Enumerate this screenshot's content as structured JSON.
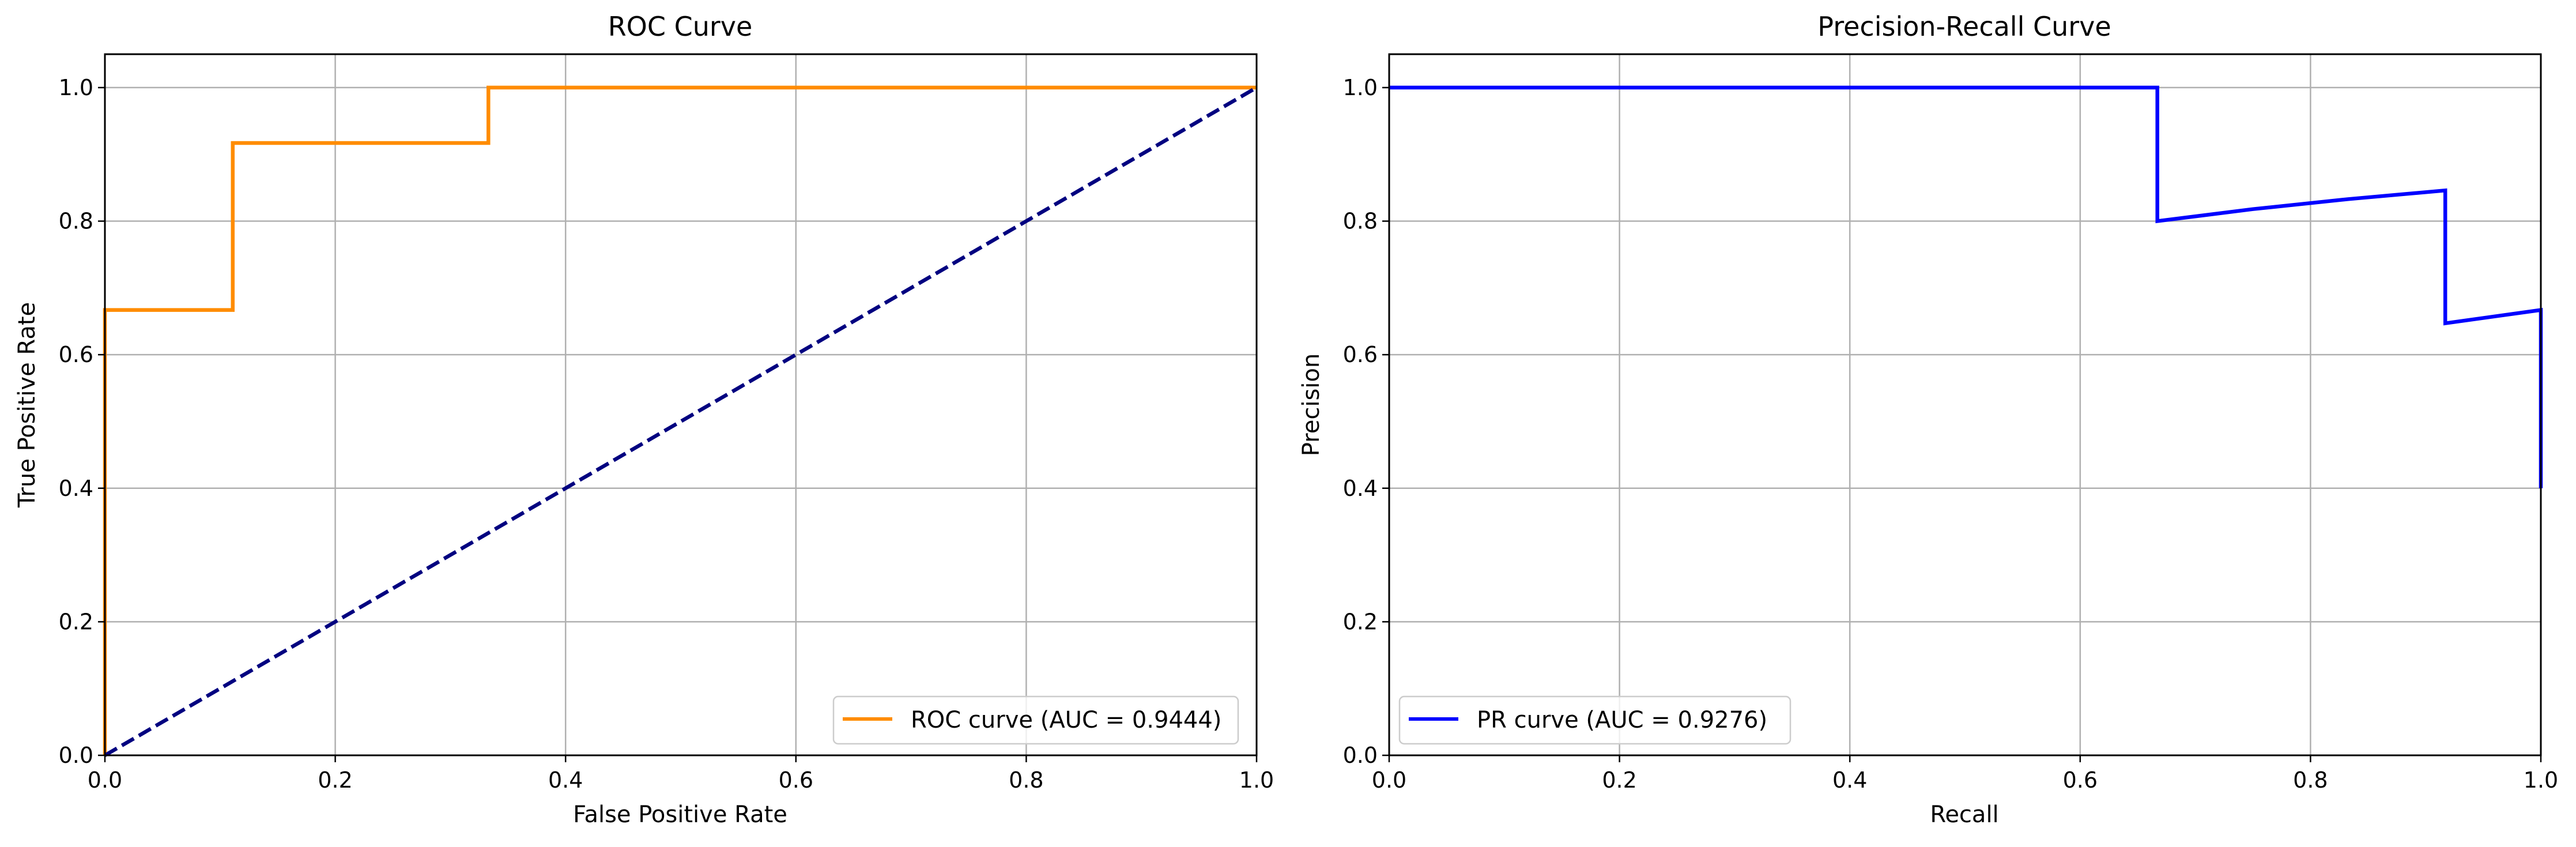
{
  "chart_data": [
    {
      "type": "line",
      "title": "ROC Curve",
      "xlabel": "False Positive Rate",
      "ylabel": "True Positive Rate",
      "xlim": [
        0,
        1
      ],
      "ylim": [
        0,
        1.05
      ],
      "xticks": [
        "0.0",
        "0.2",
        "0.4",
        "0.6",
        "0.8",
        "1.0"
      ],
      "yticks": [
        "0.0",
        "0.2",
        "0.4",
        "0.6",
        "0.8",
        "1.0"
      ],
      "grid": true,
      "legend_position": "lower-right",
      "series": [
        {
          "name": "ROC curve (AUC = 0.9444)",
          "color": "#ff8c00",
          "style": "solid",
          "in_legend": true,
          "x": [
            0,
            0,
            0.111,
            0.111,
            0.333,
            0.333,
            1.0
          ],
          "y": [
            0,
            0.667,
            0.667,
            0.917,
            0.917,
            1.0,
            1.0
          ]
        },
        {
          "name": "chance",
          "color": "#000080",
          "style": "dashed",
          "in_legend": false,
          "x": [
            0,
            1
          ],
          "y": [
            0,
            1
          ]
        }
      ]
    },
    {
      "type": "line",
      "title": "Precision-Recall Curve",
      "xlabel": "Recall",
      "ylabel": "Precision",
      "xlim": [
        0,
        1
      ],
      "ylim": [
        0,
        1.05
      ],
      "xticks": [
        "0.0",
        "0.2",
        "0.4",
        "0.6",
        "0.8",
        "1.0"
      ],
      "yticks": [
        "0.0",
        "0.2",
        "0.4",
        "0.6",
        "0.8",
        "1.0"
      ],
      "grid": true,
      "legend_position": "lower-left",
      "series": [
        {
          "name": "PR curve (AUC = 0.9276)",
          "color": "#0000ff",
          "style": "solid",
          "in_legend": true,
          "x": [
            0,
            0.667,
            0.667,
            0.75,
            0.833,
            0.917,
            0.917,
            1.0,
            1.0
          ],
          "y": [
            1.0,
            1.0,
            0.8,
            0.818,
            0.833,
            0.846,
            0.647,
            0.667,
            0.4
          ]
        }
      ]
    }
  ]
}
